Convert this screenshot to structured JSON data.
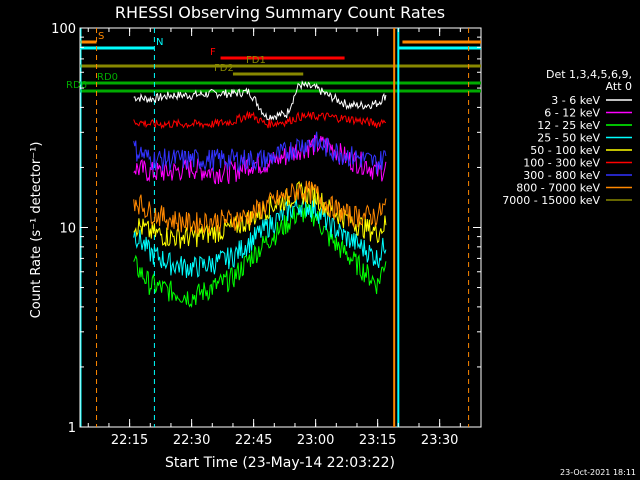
{
  "chart_data": {
    "type": "line",
    "title": "RHESSI Observing Summary Count Rates",
    "xlabel": "Start Time (23-May-14 22:03:22)",
    "ylabel": "Count Rate (s⁻¹ detector⁻¹)",
    "y_scale": "log",
    "ylim": [
      1,
      100
    ],
    "xlim": [
      "22:03",
      "23:40"
    ],
    "x_ticks": [
      "22:15",
      "22:30",
      "22:45",
      "23:00",
      "23:15",
      "23:30"
    ],
    "y_ticks": [
      "1",
      "10",
      "100"
    ],
    "grid": false,
    "legend_position": "right",
    "legend_header": [
      "Det 1,3,4,5,6,9,",
      "Att 0"
    ],
    "footer_timestamp": "23-Oct-2021 18:11",
    "series": [
      {
        "name": "3 - 6 keV",
        "color": "#ffffff",
        "x": [
          "22:16",
          "22:20",
          "22:25",
          "22:30",
          "22:35",
          "22:40",
          "22:44",
          "22:48",
          "22:53",
          "22:56",
          "23:00",
          "23:03",
          "23:08",
          "23:12",
          "23:15",
          "23:17"
        ],
        "values": [
          45,
          44,
          46,
          46,
          47,
          47,
          48,
          36,
          37,
          52,
          50,
          46,
          41,
          41,
          42,
          46
        ]
      },
      {
        "name": "6 - 12 keV",
        "color": "#ff00ff",
        "x": [
          "22:16",
          "22:20",
          "22:25",
          "22:30",
          "22:35",
          "22:40",
          "22:44",
          "22:48",
          "22:53",
          "22:56",
          "23:00",
          "23:03",
          "23:08",
          "23:12",
          "23:15",
          "23:17"
        ],
        "values": [
          20,
          19,
          19,
          20,
          19,
          19,
          21,
          21,
          23,
          25,
          26,
          26,
          22,
          21,
          19,
          20
        ]
      },
      {
        "name": "12 - 25 keV",
        "color": "#00ff00",
        "x": [
          "22:16",
          "22:20",
          "22:25",
          "22:30",
          "22:35",
          "22:40",
          "22:44",
          "22:48",
          "22:53",
          "22:56",
          "23:00",
          "23:03",
          "23:08",
          "23:12",
          "23:15",
          "23:17"
        ],
        "values": [
          6.6,
          5.2,
          4.8,
          4.5,
          5.0,
          5.6,
          7.0,
          8.5,
          10.5,
          12.0,
          11.5,
          9.0,
          7.2,
          6.0,
          5.2,
          7.0
        ]
      },
      {
        "name": "25 - 50 keV",
        "color": "#00ffff",
        "x": [
          "22:16",
          "22:20",
          "22:25",
          "22:30",
          "22:35",
          "22:40",
          "22:44",
          "22:48",
          "22:53",
          "22:56",
          "23:00",
          "23:03",
          "23:08",
          "23:12",
          "23:15",
          "23:17"
        ],
        "values": [
          9.5,
          7.5,
          6.6,
          6.3,
          6.6,
          7.2,
          8.5,
          10.0,
          12.0,
          13.0,
          12.5,
          10.5,
          8.8,
          7.8,
          7.0,
          8.5
        ]
      },
      {
        "name": "50 - 100 keV",
        "color": "#ffff00",
        "x": [
          "22:16",
          "22:20",
          "22:25",
          "22:30",
          "22:35",
          "22:40",
          "22:44",
          "22:48",
          "22:53",
          "22:56",
          "23:00",
          "23:03",
          "23:08",
          "23:12",
          "23:15",
          "23:17"
        ],
        "values": [
          10.5,
          9.5,
          9.0,
          9.0,
          9.5,
          10.0,
          11.0,
          12.5,
          14.0,
          15.0,
          14.5,
          12.5,
          11.0,
          10.0,
          9.5,
          10.5
        ]
      },
      {
        "name": "100 - 300 keV",
        "color": "#ff0000",
        "x": [
          "22:16",
          "22:20",
          "22:25",
          "22:30",
          "22:35",
          "22:40",
          "22:44",
          "22:48",
          "22:53",
          "22:56",
          "23:00",
          "23:03",
          "23:08",
          "23:12",
          "23:15",
          "23:17"
        ],
        "values": [
          34,
          33,
          33,
          33,
          33,
          34,
          37,
          33,
          34,
          36,
          36,
          36,
          35,
          34,
          33,
          35
        ]
      },
      {
        "name": "300 - 800 keV",
        "color": "#3333ff",
        "x": [
          "22:16",
          "22:20",
          "22:25",
          "22:30",
          "22:35",
          "22:40",
          "22:44",
          "22:48",
          "22:53",
          "22:56",
          "23:00",
          "23:03",
          "23:08",
          "23:12",
          "23:15",
          "23:17"
        ],
        "values": [
          25,
          22,
          22,
          22,
          22,
          22,
          22,
          22,
          24,
          26,
          27,
          25,
          23,
          22,
          21,
          23
        ]
      },
      {
        "name": "800 - 7000 keV",
        "color": "#ff8800",
        "x": [
          "22:16",
          "22:20",
          "22:25",
          "22:30",
          "22:35",
          "22:40",
          "22:44",
          "22:48",
          "22:53",
          "22:56",
          "23:00",
          "23:03",
          "23:08",
          "23:12",
          "23:15",
          "23:17"
        ],
        "values": [
          14.0,
          12.0,
          11.0,
          10.5,
          10.8,
          11.0,
          11.5,
          13.0,
          14.5,
          15.5,
          15.0,
          13.0,
          11.5,
          11.5,
          11.5,
          13.0
        ]
      },
      {
        "name": "7000 - 15000 keV",
        "color": "#888800",
        "x": [],
        "values": []
      }
    ],
    "state_bars": [
      {
        "label": "S",
        "color": "#ff8800",
        "start": "22:03",
        "end": "22:07",
        "start2": "23:21",
        "end2": "23:40"
      },
      {
        "label": "N",
        "color": "#00ffff",
        "start": "22:03",
        "end": "22:21",
        "start2": "23:20",
        "end2": "23:40"
      },
      {
        "label": "F",
        "color": "#ff0000",
        "start": "22:37",
        "end": "23:07"
      },
      {
        "label": "FD1",
        "color": "#888800",
        "start": "22:03",
        "end": "23:40"
      },
      {
        "label": "FD2",
        "color": "#888800",
        "start": "22:40",
        "end": "22:57"
      },
      {
        "label": "RD0",
        "color": "#00aa00",
        "start": "22:03",
        "end": "23:40"
      },
      {
        "label": "RD6",
        "color": "#00aa00",
        "start": "22:03",
        "end": "23:40"
      }
    ]
  }
}
